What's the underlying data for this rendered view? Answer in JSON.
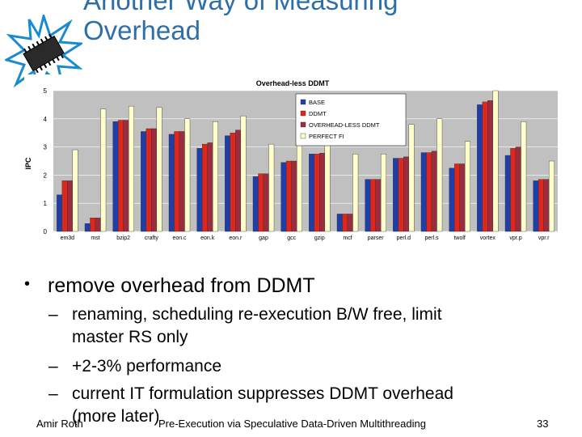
{
  "slide": {
    "title_line1": "Another Way of Measuring",
    "title_line2": "Overhead",
    "bullet": "remove overhead from DDMT",
    "subs": [
      "renaming, scheduling re-execution B/W free, limit",
      "master RS only",
      "+2-3% performance",
      "current IT formulation suppresses DDMT overhead",
      "(more later)"
    ],
    "sub_dash": "–",
    "bullet_mark": "•",
    "footer_author": "Amir Roth",
    "footer_title": "Pre-Execution via Speculative Data-Driven Multithreading",
    "page_number": "33"
  },
  "colors": {
    "title": "#2e6fa8",
    "base": "#1f3fa8",
    "ddmt": "#e0261b",
    "overhead_less": "#9b2d3f",
    "perfect": "#ffffcc",
    "plot_bg": "#c0c0c0"
  },
  "chart_data": {
    "type": "bar",
    "title": "Overhead-less DDMT",
    "xlabel": "",
    "ylabel": "IPC",
    "ylim": [
      0,
      5
    ],
    "yticks": [
      0,
      1,
      2,
      3,
      4,
      5
    ],
    "categories": [
      "em3d",
      "mst",
      "bzip2",
      "crafty",
      "eon.c",
      "eon.k",
      "eon.r",
      "gap",
      "gcc",
      "gzip",
      "mcf",
      "parser",
      "perl.d",
      "perl.s",
      "twolf",
      "vortex",
      "vpr.p",
      "vpr.r"
    ],
    "legend": [
      "BASE",
      "DDMT",
      "OVERHEAD-LESS DDMT",
      "PERFECT FI"
    ],
    "legend_position": "top-right",
    "series": [
      {
        "name": "BASE",
        "values": [
          1.3,
          0.28,
          3.9,
          3.55,
          3.45,
          2.95,
          3.4,
          1.95,
          2.45,
          2.75,
          0.62,
          1.85,
          2.6,
          2.8,
          2.25,
          4.5,
          2.7,
          1.8
        ]
      },
      {
        "name": "DDMT",
        "values": [
          1.8,
          0.48,
          3.95,
          3.65,
          3.55,
          3.1,
          3.5,
          2.05,
          2.5,
          2.75,
          0.62,
          1.85,
          2.6,
          2.8,
          2.4,
          4.6,
          2.95,
          1.85
        ]
      },
      {
        "name": "OVERHEAD-LESS DDMT",
        "values": [
          1.8,
          0.48,
          3.95,
          3.65,
          3.55,
          3.15,
          3.6,
          2.05,
          2.5,
          2.78,
          0.62,
          1.85,
          2.65,
          2.85,
          2.4,
          4.65,
          3.0,
          1.85
        ]
      },
      {
        "name": "PERFECT FI",
        "values": [
          2.9,
          4.35,
          4.45,
          4.4,
          4.0,
          3.9,
          4.1,
          3.1,
          3.45,
          3.55,
          2.75,
          2.75,
          3.8,
          4.0,
          3.2,
          5.0,
          3.9,
          2.5
        ]
      }
    ]
  }
}
